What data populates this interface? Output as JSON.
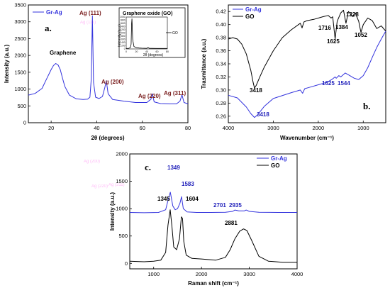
{
  "colors": {
    "gr_ag": "#3333dd",
    "go": "#000000",
    "peak_label": "#7a1f1f",
    "peak_blue": "#2222bb"
  },
  "chart_data": [
    {
      "type": "line",
      "panel_label": "a.",
      "xlabel": "2θ (degrees)",
      "ylabel": "Intensity (a.u.)",
      "xlim": [
        10,
        80
      ],
      "ylim": [
        0,
        3500
      ],
      "xticks": [
        "20",
        "40",
        "60",
        "80"
      ],
      "yticks": [
        "0",
        "500",
        "1000",
        "1500",
        "2000",
        "2500",
        "3000",
        "3500"
      ],
      "legend": {
        "position": "top-left",
        "entries": [
          "Gr-Ag"
        ]
      },
      "series": [
        {
          "name": "Gr-Ag",
          "color": "#3333dd",
          "x": [
            10,
            13,
            16,
            18,
            20,
            21,
            22,
            23,
            24,
            25,
            26,
            28,
            31,
            34,
            36,
            37,
            37.6,
            38.1,
            38.6,
            39.5,
            41,
            42.5,
            43.6,
            44.2,
            45,
            47,
            52,
            57,
            62,
            63.8,
            64.4,
            65.2,
            68,
            72,
            75,
            76.5,
            77.4,
            78.3,
            80
          ],
          "y": [
            820,
            870,
            1020,
            1300,
            1580,
            1700,
            1760,
            1720,
            1580,
            1320,
            1080,
            820,
            710,
            690,
            700,
            760,
            1300,
            3180,
            1200,
            760,
            720,
            780,
            1060,
            1250,
            860,
            690,
            640,
            600,
            600,
            700,
            860,
            620,
            570,
            560,
            560,
            640,
            830,
            600,
            560
          ]
        }
      ],
      "annotations": [
        "Graphene",
        "Ag (111)",
        "Ag (200)",
        "Ag (220)",
        "Ag (311)"
      ],
      "inset": {
        "title": "Graphene oxide (GO)",
        "xlabel": "2θ (degrees)",
        "ylabel": "Intensity (a.u.)",
        "xlim": [
          0,
          80
        ],
        "ylim": [
          0,
          2000
        ],
        "xticks": [
          "0",
          "20",
          "40",
          "60",
          "80"
        ],
        "yticks": [
          "0",
          "200",
          "400",
          "600",
          "800",
          "1000",
          "1200",
          "1400",
          "1600",
          "1800",
          "2000"
        ],
        "legend": [
          "GO"
        ],
        "series": [
          {
            "name": "GO",
            "color": "#000000",
            "x": [
              0,
              5,
              8,
              9.5,
              10.5,
              11.2,
              12.5,
              15,
              20,
              25,
              30,
              40,
              42.5,
              45,
              50,
              60,
              70,
              80
            ],
            "y": [
              30,
              40,
              80,
              300,
              1600,
              1900,
              600,
              150,
              80,
              60,
              50,
              40,
              90,
              40,
              35,
              30,
              30,
              30
            ]
          }
        ]
      }
    },
    {
      "type": "line",
      "panel_label": "b.",
      "xlabel": "Wavenumber (cm⁻¹)",
      "ylabel": "Trasmittance (a.u.)",
      "xlim": [
        4000,
        500
      ],
      "ylim": [
        0.25,
        0.43
      ],
      "xticks": [
        "4000",
        "3000",
        "2000",
        "1000"
      ],
      "yticks": [
        "0.26",
        "0.28",
        "0.30",
        "0.32",
        "0.34",
        "0.36",
        "0.38",
        "0.40",
        "0.42"
      ],
      "legend": {
        "position": "top-left",
        "entries": [
          "Gr-Ag",
          "GO"
        ]
      },
      "series": [
        {
          "name": "GO",
          "color": "#000000",
          "x": [
            4000,
            3900,
            3800,
            3700,
            3600,
            3500,
            3450,
            3418,
            3380,
            3300,
            3200,
            3000,
            2800,
            2600,
            2400,
            2360,
            2320,
            2250,
            2100,
            1900,
            1780,
            1716,
            1680,
            1625,
            1580,
            1500,
            1440,
            1384,
            1330,
            1228,
            1180,
            1100,
            1052,
            1000,
            900,
            800,
            700,
            600,
            500
          ],
          "y": [
            0.378,
            0.38,
            0.378,
            0.37,
            0.355,
            0.33,
            0.312,
            0.303,
            0.307,
            0.32,
            0.335,
            0.36,
            0.38,
            0.392,
            0.402,
            0.395,
            0.404,
            0.406,
            0.408,
            0.412,
            0.414,
            0.41,
            0.412,
            0.378,
            0.405,
            0.418,
            0.422,
            0.402,
            0.42,
            0.412,
            0.418,
            0.405,
            0.388,
            0.4,
            0.41,
            0.406,
            0.394,
            0.398,
            0.39
          ]
        },
        {
          "name": "Gr-Ag",
          "color": "#3333dd",
          "x": [
            4000,
            3800,
            3600,
            3500,
            3418,
            3350,
            3200,
            3000,
            2600,
            2400,
            2350,
            2300,
            2200,
            2000,
            1800,
            1700,
            1625,
            1600,
            1544,
            1500,
            1400,
            1300,
            1200,
            1100,
            1000,
            900,
            800,
            700,
            600,
            500
          ],
          "y": [
            0.292,
            0.288,
            0.274,
            0.264,
            0.258,
            0.262,
            0.275,
            0.287,
            0.296,
            0.3,
            0.295,
            0.302,
            0.304,
            0.308,
            0.312,
            0.316,
            0.32,
            0.318,
            0.322,
            0.32,
            0.326,
            0.322,
            0.318,
            0.316,
            0.322,
            0.334,
            0.35,
            0.365,
            0.378,
            0.39
          ]
        }
      ],
      "annotations": [
        "1716",
        "1625",
        "1384",
        "1228",
        "1052",
        "3418",
        "3418",
        "1625",
        "1544"
      ]
    },
    {
      "type": "line",
      "panel_label": "c.",
      "xlabel": "Raman shift (cm⁻¹)",
      "ylabel": "Intensity (a.u.)",
      "xlim": [
        500,
        4000
      ],
      "ylim": [
        -100,
        2000
      ],
      "xticks": [
        "1000",
        "2000",
        "3000",
        "4000"
      ],
      "yticks": [
        "0",
        "500",
        "1000",
        "1500",
        "2000"
      ],
      "legend": {
        "position": "top-right",
        "entries": [
          "Gr-Ag",
          "GO"
        ]
      },
      "series": [
        {
          "name": "Gr-Ag",
          "color": "#3333dd",
          "x": [
            500,
            800,
            1100,
            1250,
            1300,
            1349,
            1400,
            1450,
            1500,
            1550,
            1583,
            1620,
            1700,
            1900,
            2200,
            2500,
            2650,
            2701,
            2780,
            2900,
            2935,
            3000,
            3200,
            3600,
            4000
          ],
          "y": [
            930,
            925,
            930,
            980,
            1150,
            1300,
            1050,
            980,
            1000,
            1100,
            1220,
            1000,
            940,
            930,
            930,
            935,
            950,
            975,
            960,
            960,
            975,
            950,
            935,
            930,
            930
          ]
        },
        {
          "name": "GO",
          "color": "#000000",
          "x": [
            500,
            800,
            1000,
            1150,
            1250,
            1300,
            1345,
            1380,
            1420,
            1480,
            1540,
            1580,
            1604,
            1630,
            1680,
            1800,
            2000,
            2300,
            2500,
            2600,
            2700,
            2800,
            2881,
            2950,
            3050,
            3200,
            3400,
            3700,
            4000
          ],
          "y": [
            40,
            30,
            40,
            60,
            200,
            700,
            980,
            700,
            300,
            250,
            450,
            850,
            820,
            400,
            150,
            90,
            80,
            60,
            110,
            250,
            450,
            590,
            630,
            600,
            420,
            130,
            40,
            20,
            20
          ]
        }
      ],
      "annotations": [
        "1349",
        "1583",
        "1345",
        "1604",
        "2701",
        "2935",
        "2881"
      ]
    }
  ],
  "ghost_text": [
    "Ag (111)",
    "Ag (200)",
    "Ag (220)",
    "Ag (311)"
  ]
}
